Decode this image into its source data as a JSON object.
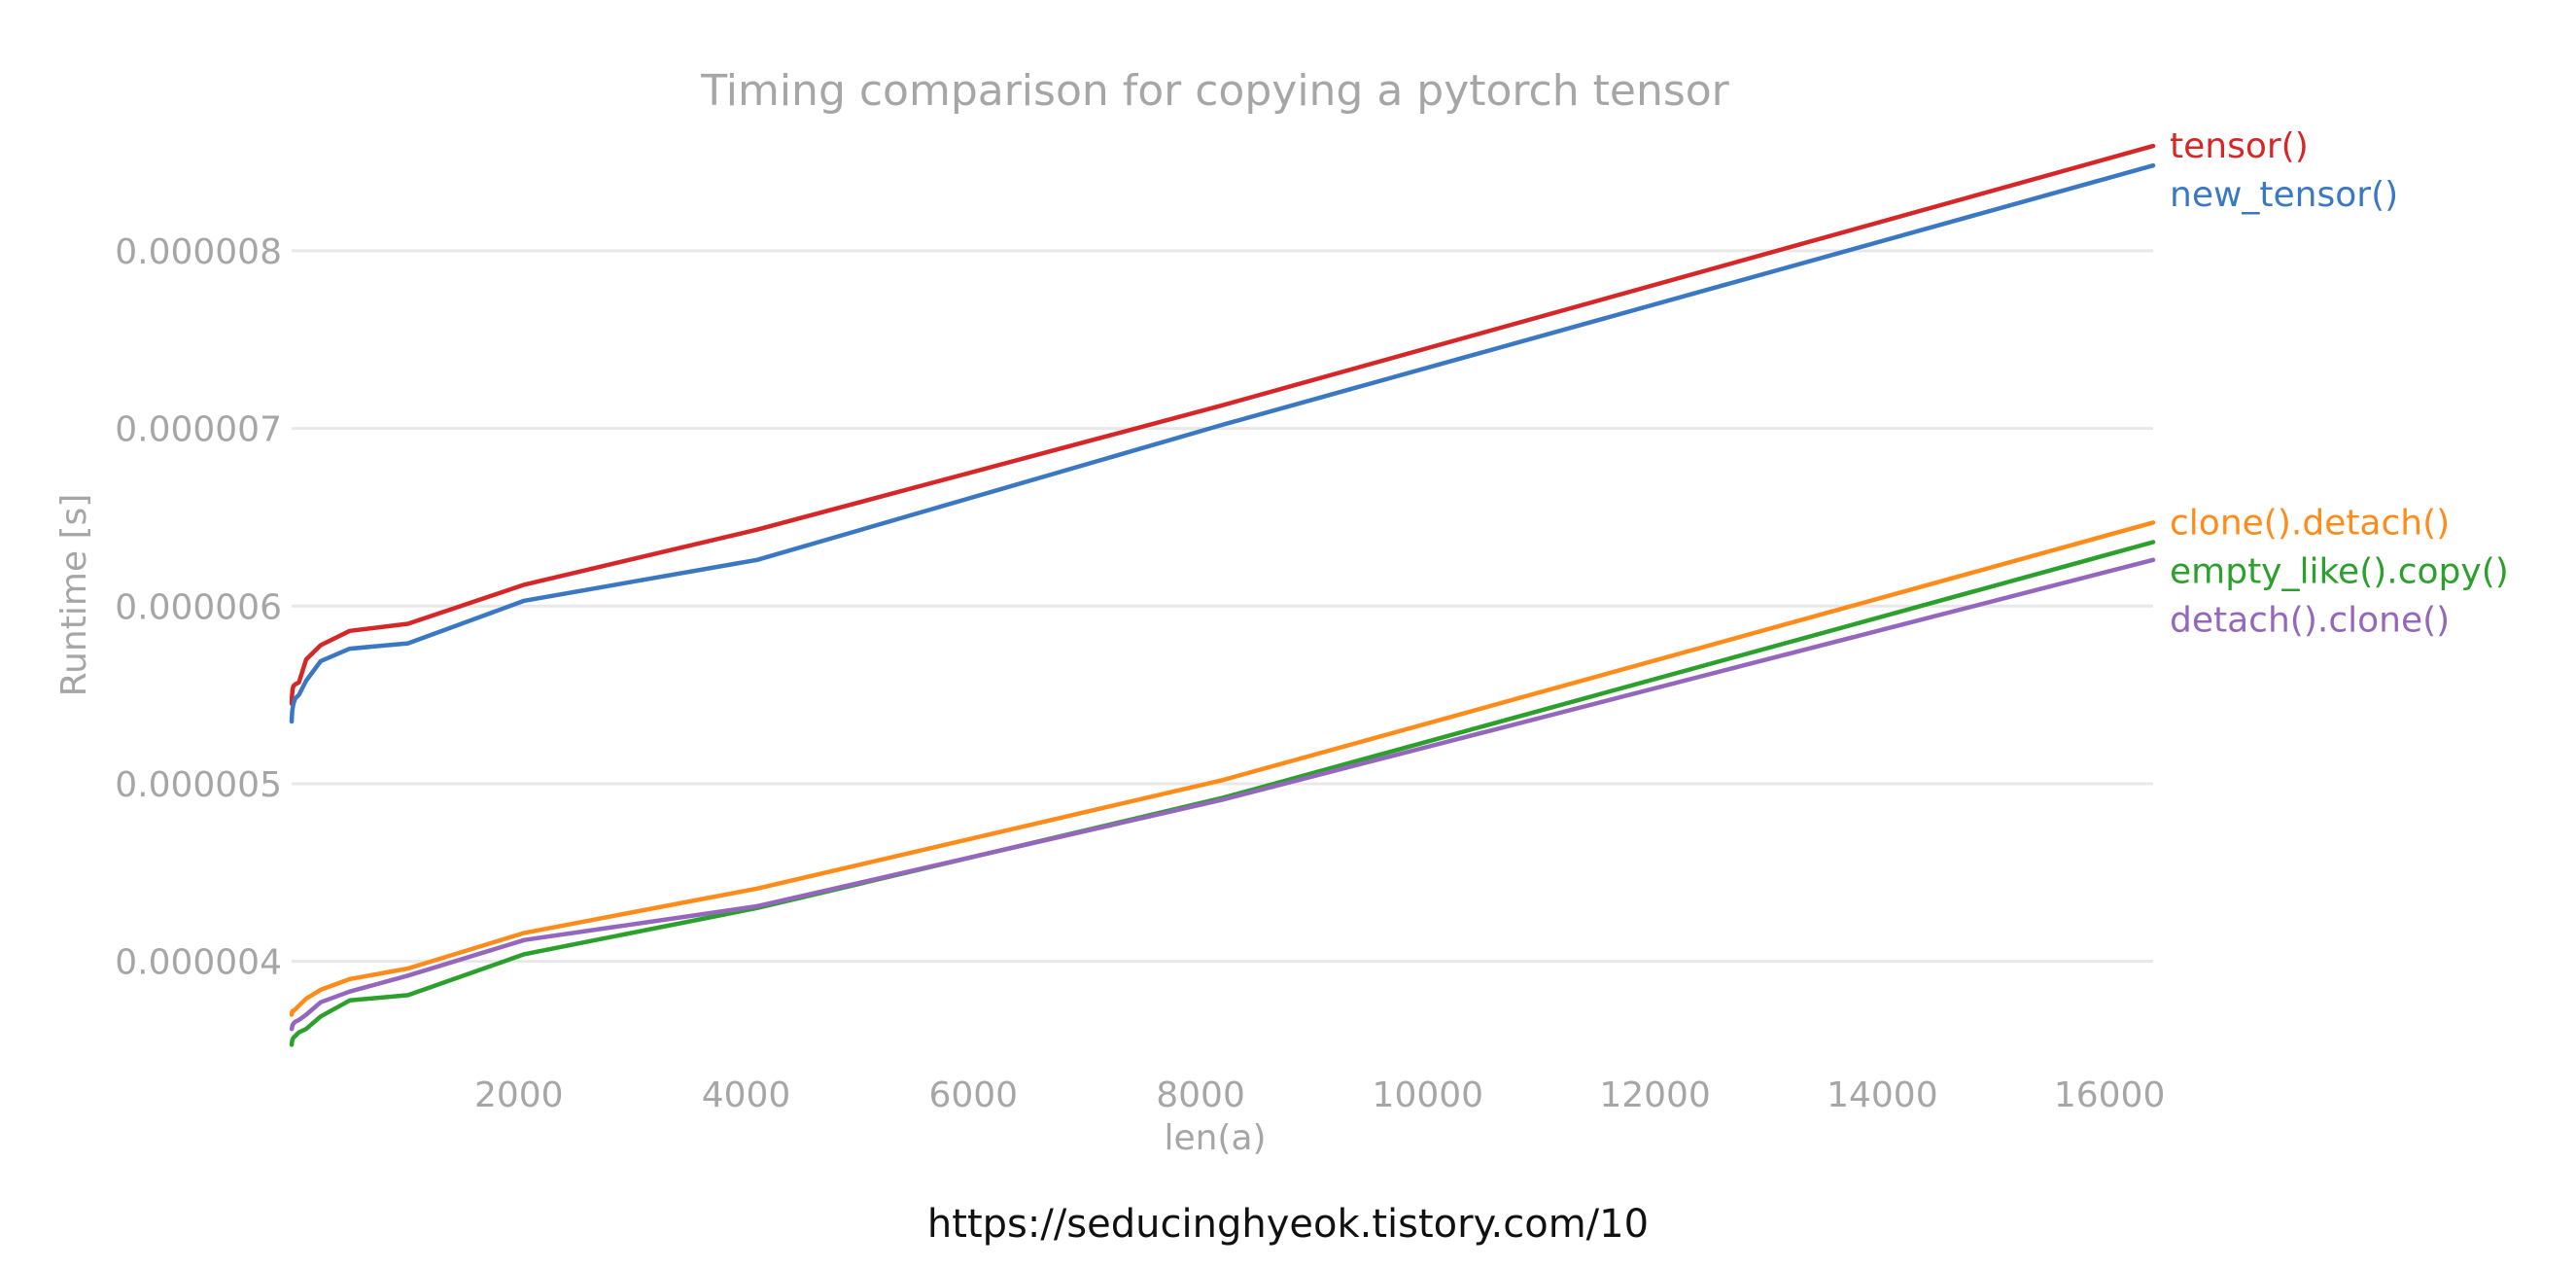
{
  "chart_data": {
    "type": "line",
    "title": "Timing comparison for copying a pytorch tensor",
    "xlabel": "len(a)",
    "ylabel": "Runtime [s]",
    "xlim": [
      0,
      16384
    ],
    "ylim": [
      3.5e-06,
      8.7e-06
    ],
    "x_ticks": [
      2000,
      4000,
      6000,
      8000,
      10000,
      12000,
      14000,
      16000
    ],
    "x_tick_labels": [
      "2000",
      "4000",
      "6000",
      "8000",
      "10000",
      "12000",
      "14000",
      "16000"
    ],
    "y_ticks": [
      4e-06,
      5e-06,
      6e-06,
      7e-06,
      8e-06
    ],
    "y_tick_labels": [
      "0.000004",
      "0.000005",
      "0.000006",
      "0.000007",
      "0.000008"
    ],
    "grid": "horizontal",
    "legend": "series labels at right end of lines",
    "x": [
      1,
      2,
      4,
      8,
      16,
      32,
      64,
      128,
      256,
      512,
      1024,
      2048,
      4096,
      8192,
      16384
    ],
    "series": [
      {
        "name": "tensor()",
        "color": "#d62728",
        "values": [
          5.45e-06,
          5.48e-06,
          5.5e-06,
          5.53e-06,
          5.55e-06,
          5.56e-06,
          5.57e-06,
          5.7e-06,
          5.78e-06,
          5.86e-06,
          5.9e-06,
          6.12e-06,
          6.43e-06,
          7.13e-06,
          8.59e-06
        ]
      },
      {
        "name": "new_tensor()",
        "color": "#3a78c3",
        "values": [
          5.35e-06,
          5.37e-06,
          5.4e-06,
          5.42e-06,
          5.45e-06,
          5.48e-06,
          5.5e-06,
          5.58e-06,
          5.69e-06,
          5.76e-06,
          5.79e-06,
          6.03e-06,
          6.26e-06,
          7.02e-06,
          8.48e-06
        ]
      },
      {
        "name": "clone().detach()",
        "color": "#ff8c1a",
        "values": [
          3.7e-06,
          3.71e-06,
          3.71e-06,
          3.72e-06,
          3.72e-06,
          3.73e-06,
          3.75e-06,
          3.79e-06,
          3.84e-06,
          3.9e-06,
          3.96e-06,
          4.16e-06,
          4.41e-06,
          5.02e-06,
          6.47e-06
        ]
      },
      {
        "name": "empty_like().copy()",
        "color": "#2ca02c",
        "values": [
          3.53e-06,
          3.54e-06,
          3.55e-06,
          3.56e-06,
          3.57e-06,
          3.58e-06,
          3.6e-06,
          3.62e-06,
          3.69e-06,
          3.78e-06,
          3.81e-06,
          4.04e-06,
          4.3e-06,
          4.92e-06,
          6.36e-06
        ]
      },
      {
        "name": "detach().clone()",
        "color": "#9467bd",
        "values": [
          3.62e-06,
          3.62e-06,
          3.63e-06,
          3.64e-06,
          3.65e-06,
          3.66e-06,
          3.67e-06,
          3.7e-06,
          3.77e-06,
          3.83e-06,
          3.92e-06,
          4.12e-06,
          4.31e-06,
          4.91e-06,
          6.26e-06
        ]
      }
    ]
  },
  "caption": "https://seducinghyeok.tistory.com/10"
}
